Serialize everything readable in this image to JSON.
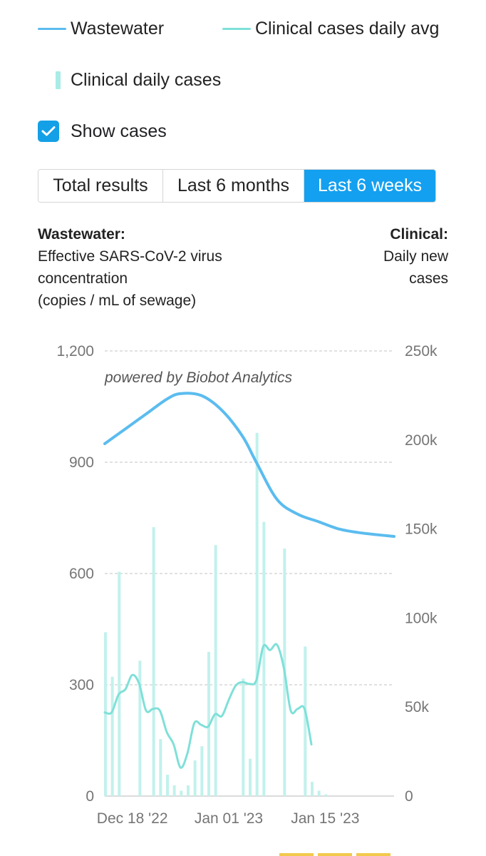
{
  "legend": {
    "wastewater": "Wastewater",
    "clinical_avg": "Clinical cases daily avg",
    "clinical_daily": "Clinical daily cases"
  },
  "show_cases": {
    "label": "Show cases",
    "checked": true
  },
  "range_tabs": [
    {
      "label": "Total results",
      "active": false
    },
    {
      "label": "Last 6 months",
      "active": false
    },
    {
      "label": "Last 6 weeks",
      "active": true
    }
  ],
  "axis_titles": {
    "left_heading": "Wastewater:",
    "left_line1": "Effective SARS-CoV-2 virus",
    "left_line2": "concentration",
    "left_line3": "(copies / mL of sewage)",
    "right_heading": "Clinical:",
    "right_line1": "Daily new",
    "right_line2": "cases"
  },
  "colors": {
    "wastewater": "#5bbcef",
    "clinical_avg": "#7fe0d8",
    "clinical_bar": "#c2f1ec",
    "accent": "#14a0f0"
  },
  "chart_data": {
    "type": "line",
    "credit": "powered by Biobot Analytics",
    "x_ticks": [
      "Dec 18 '22",
      "Jan 01 '23",
      "Jan 15 '23"
    ],
    "x_tick_day_index": [
      4,
      18,
      32
    ],
    "y_left": {
      "ticks": [
        0,
        300,
        600,
        900,
        1200
      ],
      "tick_labels": [
        "0",
        "300",
        "600",
        "900",
        "1,200"
      ],
      "range": [
        0,
        1200
      ]
    },
    "y_right": {
      "ticks": [
        0,
        50000,
        100000,
        150000,
        200000,
        250000
      ],
      "tick_labels": [
        "0",
        "50k",
        "100k",
        "150k",
        "200k",
        "250k"
      ],
      "range": [
        0,
        250000
      ]
    },
    "day_range": [
      0,
      42
    ],
    "series": [
      {
        "name": "Wastewater",
        "axis": "left",
        "days": [
          0,
          3,
          6,
          9,
          11,
          14,
          17,
          20,
          22,
          25,
          28,
          31,
          34,
          37,
          42
        ],
        "values": [
          950,
          990,
          1030,
          1070,
          1085,
          1080,
          1040,
          970,
          900,
          800,
          760,
          740,
          720,
          710,
          700
        ]
      },
      {
        "name": "Clinical cases daily avg",
        "axis": "right",
        "days": [
          0,
          1,
          2,
          3,
          4,
          5,
          6,
          7,
          8,
          9,
          10,
          11,
          12,
          13,
          14,
          15,
          16,
          17,
          18,
          19,
          20,
          21,
          22,
          23,
          24,
          25,
          26,
          27,
          28,
          29,
          30
        ],
        "values": [
          47000,
          47000,
          57000,
          60000,
          68000,
          63000,
          48000,
          49000,
          48000,
          36000,
          29000,
          16000,
          24000,
          41000,
          40000,
          39000,
          46000,
          45000,
          54000,
          62000,
          64000,
          63000,
          65000,
          84000,
          82000,
          85000,
          72000,
          48000,
          49000,
          49000,
          29000
        ]
      },
      {
        "name": "Clinical daily cases",
        "axis": "right",
        "type": "bar",
        "days": [
          0,
          1,
          2,
          3,
          4,
          5,
          6,
          7,
          8,
          9,
          10,
          11,
          12,
          13,
          14,
          15,
          16,
          17,
          18,
          19,
          20,
          21,
          22,
          23,
          24,
          25,
          26,
          27,
          28,
          29,
          30,
          31,
          32
        ],
        "values": [
          92000,
          67000,
          126000,
          0,
          0,
          76000,
          0,
          151000,
          32000,
          12000,
          6000,
          3000,
          6000,
          20000,
          28000,
          81000,
          141000,
          0,
          0,
          0,
          66000,
          21000,
          204000,
          154000,
          0,
          0,
          139000,
          0,
          0,
          84000,
          8000,
          3000,
          1000
        ]
      }
    ]
  }
}
